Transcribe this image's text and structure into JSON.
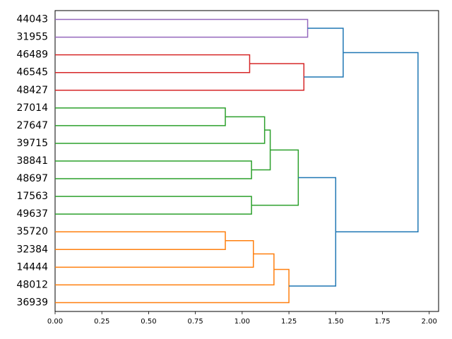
{
  "chart_data": {
    "type": "dendrogram",
    "orientation": "left",
    "xlim": [
      0.0,
      2.05
    ],
    "grid": false,
    "legend": false,
    "leaves": [
      "44043",
      "31955",
      "46489",
      "46545",
      "48427",
      "27014",
      "27647",
      "39715",
      "38841",
      "48697",
      "17563",
      "49637",
      "35720",
      "32384",
      "14444",
      "48012",
      "36939"
    ],
    "x_ticks": [
      "0.00",
      "0.25",
      "0.50",
      "0.75",
      "1.00",
      "1.25",
      "1.50",
      "1.75",
      "2.00"
    ],
    "x_tick_values": [
      0.0,
      0.25,
      0.5,
      0.75,
      1.0,
      1.25,
      1.5,
      1.75,
      2.0
    ],
    "cluster_colors": {
      "purple": "#9467bd",
      "red": "#d62728",
      "green": "#2ca02c",
      "orange": "#ff7f0e",
      "above_threshold": "#1f77b4"
    },
    "merges": [
      {
        "left": "44043",
        "right": "31955",
        "height": 1.35,
        "color": "purple"
      },
      {
        "left": "46489",
        "right": "46545",
        "height": 1.04,
        "color": "red"
      },
      {
        "left": "46489+46545",
        "right": "48427",
        "height": 1.33,
        "color": "red"
      },
      {
        "left": "44043+31955",
        "right": "46489+46545+48427",
        "height": 1.54,
        "color": "above_threshold"
      },
      {
        "left": "27014",
        "right": "27647",
        "height": 0.91,
        "color": "green"
      },
      {
        "left": "27014+27647",
        "right": "39715",
        "height": 1.12,
        "color": "green"
      },
      {
        "left": "38841",
        "right": "48697",
        "height": 1.05,
        "color": "green"
      },
      {
        "left": "27014+27647+39715",
        "right": "38841+48697",
        "height": 1.15,
        "color": "green"
      },
      {
        "left": "17563",
        "right": "49637",
        "height": 1.05,
        "color": "green"
      },
      {
        "left": "27014..48697",
        "right": "17563+49637",
        "height": 1.3,
        "color": "green"
      },
      {
        "left": "35720",
        "right": "32384",
        "height": 0.91,
        "color": "orange"
      },
      {
        "left": "35720+32384",
        "right": "14444",
        "height": 1.06,
        "color": "orange"
      },
      {
        "left": "35720+32384+14444",
        "right": "48012",
        "height": 1.17,
        "color": "orange"
      },
      {
        "left": "35720..48012",
        "right": "36939",
        "height": 1.25,
        "color": "orange"
      },
      {
        "left": "green-cluster",
        "right": "orange-cluster",
        "height": 1.5,
        "color": "above_threshold"
      },
      {
        "left": "top-group",
        "right": "bottom-group",
        "height": 1.94,
        "color": "above_threshold"
      }
    ]
  }
}
